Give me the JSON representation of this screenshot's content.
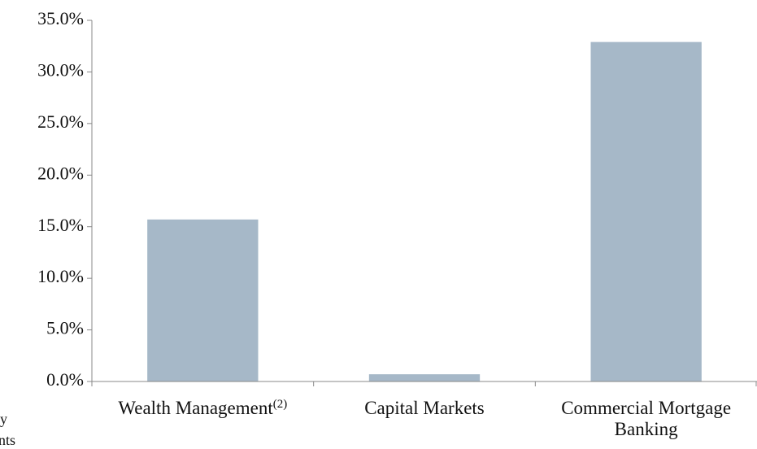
{
  "chart_data": {
    "type": "bar",
    "categories": [
      "Wealth Management",
      "Capital Markets",
      "Commercial Mortgage Banking"
    ],
    "category_superscripts": [
      "(2)",
      null,
      null
    ],
    "values": [
      15.7,
      0.7,
      32.9
    ],
    "color": "#a6b8c8",
    "ylim": [
      0,
      35
    ],
    "yticks": [
      {
        "value": 0,
        "label": "0.0%"
      },
      {
        "value": 5,
        "label": "5.0%"
      },
      {
        "value": 10,
        "label": "10.0%"
      },
      {
        "value": 15,
        "label": "15.0%"
      },
      {
        "value": 20,
        "label": "20.0%"
      },
      {
        "value": 25,
        "label": "25.0%"
      },
      {
        "value": 30,
        "label": "30.0%"
      },
      {
        "value": 35,
        "label": "35.0%"
      }
    ],
    "grid": false,
    "clipped_text": [
      "y",
      "nts"
    ]
  }
}
